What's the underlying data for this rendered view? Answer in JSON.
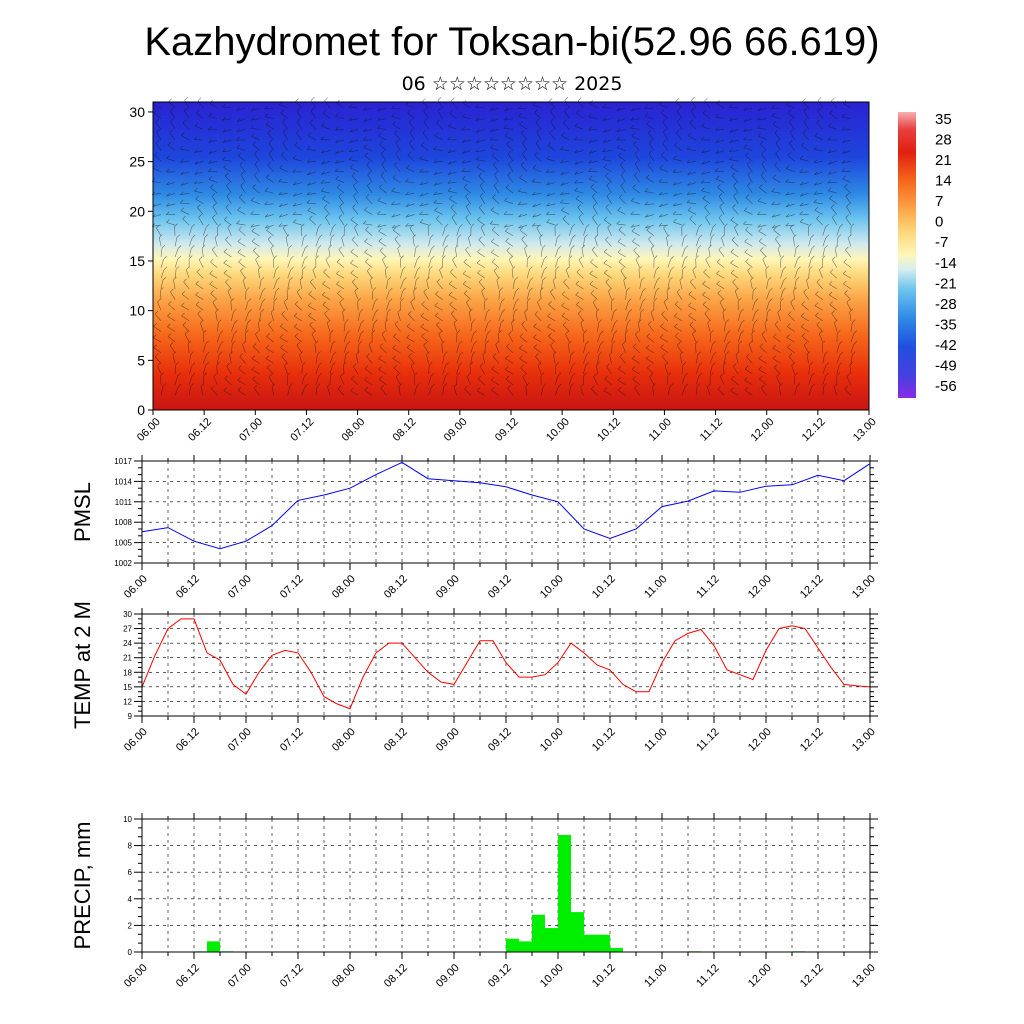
{
  "title": "Kazhydromet for Toksan-bi(52.96 66.619)",
  "subtitle": "06 ☆☆☆☆☆☆☆☆ 2025",
  "time_ticks": [
    "06.00",
    "06.12",
    "07.00",
    "07.12",
    "08.00",
    "08.12",
    "09.00",
    "09.12",
    "10.00",
    "10.12",
    "11.00",
    "11.12",
    "12.00",
    "12.12",
    "13.00"
  ],
  "colorbar": {
    "labels": [
      "35",
      "28",
      "21",
      "14",
      "7",
      "0",
      "-7",
      "-14",
      "-21",
      "-28",
      "-35",
      "-42",
      "-49",
      "-56"
    ]
  },
  "chart_data": [
    {
      "type": "heatmap",
      "name": "temperature cross-section",
      "x_categories": [
        "06.00",
        "06.12",
        "07.00",
        "07.12",
        "08.00",
        "08.12",
        "09.00",
        "09.12",
        "10.00",
        "10.12",
        "11.00",
        "11.12",
        "12.00",
        "12.12",
        "13.00"
      ],
      "ylim": [
        0,
        31
      ],
      "yticks": [
        0,
        5,
        10,
        15,
        20,
        25,
        30
      ],
      "value_range": [
        -56,
        35
      ],
      "overlay": "wind barbs"
    },
    {
      "type": "line",
      "ylabel": "PMSL",
      "ylim": [
        1002,
        1017
      ],
      "yticks": [
        1002,
        1005,
        1008,
        1011,
        1014,
        1017
      ],
      "x_range": [
        0,
        168
      ],
      "x": [
        0,
        6,
        12,
        18,
        24,
        30,
        36,
        42,
        48,
        54,
        60,
        66,
        72,
        78,
        84,
        90,
        96,
        102,
        108,
        114,
        120,
        126,
        132,
        138,
        144,
        150,
        156,
        162,
        168
      ],
      "values": [
        1006.6,
        1007.2,
        1005.2,
        1004.1,
        1005.2,
        1007.5,
        1011.2,
        1012.0,
        1013.0,
        1015.0,
        1016.8,
        1014.4,
        1014.1,
        1013.8,
        1013.2,
        1012.0,
        1011.0,
        1007.0,
        1005.6,
        1007.0,
        1010.3,
        1011.1,
        1012.6,
        1012.4,
        1013.3,
        1013.5,
        1014.9,
        1014.1,
        1016.6
      ],
      "color": "#0000ff"
    },
    {
      "type": "line",
      "ylabel": "TEMP at 2 M",
      "ylim": [
        9,
        30
      ],
      "yticks": [
        9,
        12,
        15,
        18,
        21,
        24,
        27,
        30
      ],
      "x_range": [
        0,
        168
      ],
      "x": [
        0,
        3,
        6,
        9,
        12,
        15,
        18,
        21,
        24,
        27,
        30,
        33,
        36,
        39,
        42,
        45,
        48,
        51,
        54,
        57,
        60,
        63,
        66,
        69,
        72,
        75,
        78,
        81,
        84,
        87,
        90,
        93,
        96,
        99,
        102,
        105,
        108,
        111,
        114,
        117,
        120,
        123,
        126,
        129,
        132,
        135,
        138,
        141,
        144,
        147,
        150,
        153,
        156,
        159,
        162,
        165,
        168
      ],
      "values": [
        15,
        21.5,
        27,
        29,
        29,
        22,
        20.5,
        15.5,
        13.5,
        18,
        21.5,
        22.5,
        22,
        18,
        13,
        11.5,
        10.5,
        17,
        22,
        24,
        24,
        21,
        18,
        16,
        15.5,
        20,
        24.5,
        24.5,
        20,
        17,
        17,
        17.5,
        20,
        24,
        22,
        19.5,
        18.5,
        15.5,
        14,
        14,
        20,
        24.5,
        26,
        26.8,
        23.5,
        18.5,
        17.5,
        16.5,
        22.5,
        27,
        27.6,
        27,
        23,
        19,
        15.5,
        15.2,
        15
      ],
      "color": "#ff0000"
    },
    {
      "type": "bar",
      "ylabel": "PRECIP, mm",
      "ylim": [
        0,
        10
      ],
      "yticks": [
        0,
        2,
        4,
        6,
        8,
        10
      ],
      "x_range": [
        0,
        168
      ],
      "bar_width_hours": 3,
      "x": [
        12,
        15,
        18,
        84,
        87,
        90,
        93,
        96,
        99,
        102,
        105,
        108,
        126,
        150
      ],
      "values": [
        0.05,
        0.8,
        0.05,
        1.0,
        0.8,
        2.8,
        1.8,
        8.8,
        3.0,
        1.3,
        1.3,
        0.3,
        0.05,
        0.05
      ],
      "color": "#00ee00"
    }
  ]
}
